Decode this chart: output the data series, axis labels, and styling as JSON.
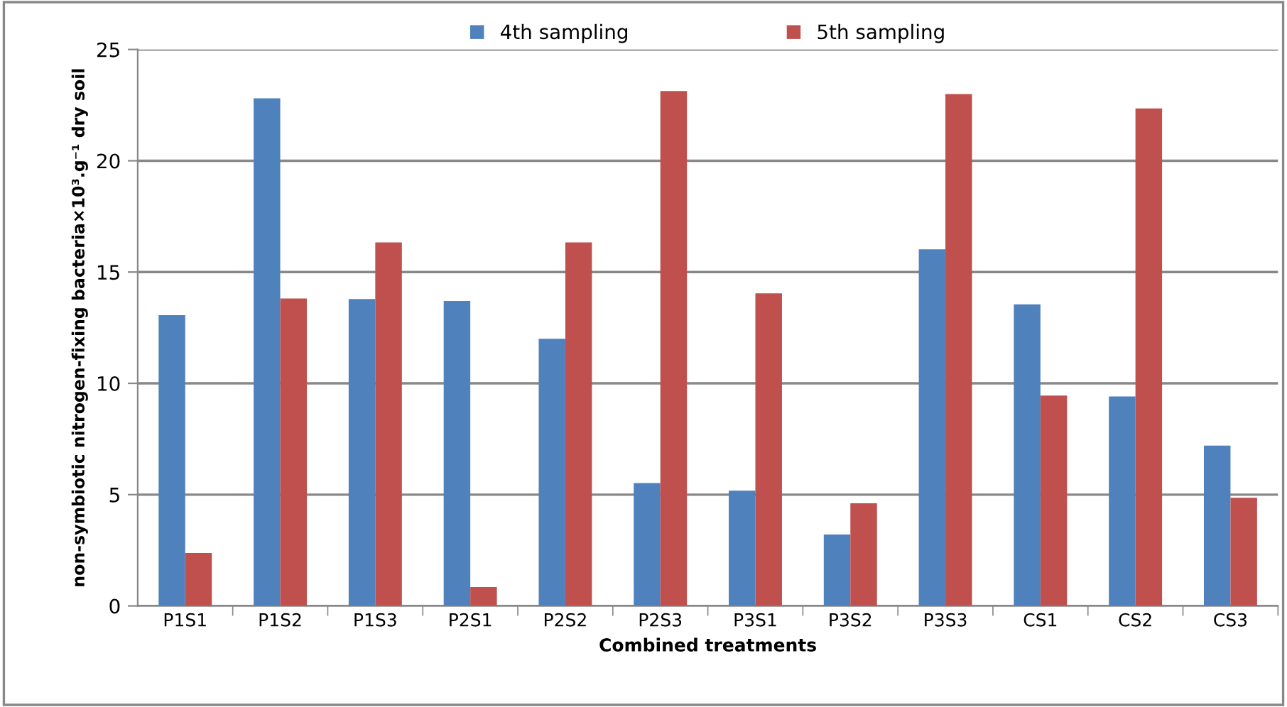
{
  "chart_data": {
    "type": "bar",
    "xlabel": "Combined treatments",
    "ylabel": "non-symbiotic nitrogen-fixing bacteria×10³.g⁻¹ dry soil",
    "categories": [
      "P1S1",
      "P1S2",
      "P1S3",
      "P2S1",
      "P2S2",
      "P2S3",
      "P3S1",
      "P3S2",
      "P3S3",
      "CS1",
      "CS2",
      "CS3"
    ],
    "series": [
      {
        "name": "4th sampling",
        "color": "#4f81bd",
        "values": [
          13.06,
          22.81,
          13.79,
          13.7,
          12.0,
          5.52,
          5.18,
          3.21,
          16.02,
          13.55,
          9.41,
          7.2
        ]
      },
      {
        "name": "5th sampling",
        "color": "#c0504d",
        "values": [
          2.38,
          13.81,
          16.33,
          0.85,
          16.33,
          23.13,
          14.04,
          4.61,
          23.0,
          9.45,
          22.35,
          4.86
        ]
      }
    ],
    "ylim": [
      0,
      25
    ],
    "yticks": [
      0,
      5,
      10,
      15,
      20,
      25
    ],
    "grid": "y",
    "legend": "top"
  }
}
